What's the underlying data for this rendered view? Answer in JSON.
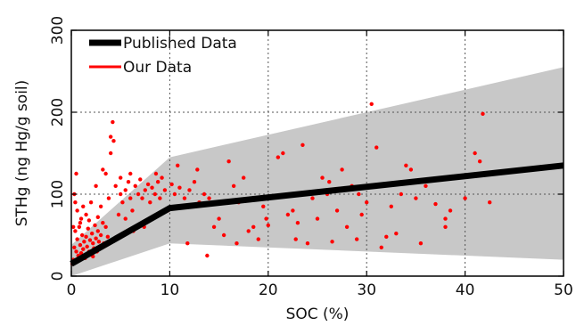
{
  "chart_data": {
    "type": "scatter",
    "xlabel": "SOC (%)",
    "ylabel": "STHg (ng Hg/g soil)",
    "xlim": [
      0,
      50
    ],
    "ylim": [
      0,
      300
    ],
    "x_ticks": [
      0,
      10,
      20,
      30,
      40,
      50
    ],
    "y_ticks": [
      0,
      100,
      200,
      300
    ],
    "x_tick_labels": [
      "0",
      "10",
      "20",
      "30",
      "40",
      "50"
    ],
    "y_tick_labels": [
      "0",
      "100",
      "200",
      "300"
    ],
    "grid": true,
    "legend_position": "top-left",
    "legend": [
      {
        "name": "Published Data",
        "color": "#000000"
      },
      {
        "name": "Our Data",
        "color": "#ff0000"
      }
    ],
    "band": {
      "color": "#c8c8c8",
      "upper": [
        [
          0,
          38
        ],
        [
          10,
          145
        ],
        [
          50,
          255
        ]
      ],
      "lower": [
        [
          0,
          0
        ],
        [
          10,
          40
        ],
        [
          50,
          20
        ]
      ]
    },
    "series": [
      {
        "name": "Published Data",
        "kind": "line",
        "color": "#000000",
        "points": [
          [
            0,
            15
          ],
          [
            10,
            83
          ],
          [
            50,
            135
          ]
        ]
      },
      {
        "name": "Our Data",
        "kind": "scatter",
        "color": "#ff0000",
        "points": [
          [
            0.2,
            20
          ],
          [
            0.3,
            35
          ],
          [
            0.4,
            55
          ],
          [
            0.5,
            30
          ],
          [
            0.6,
            45
          ],
          [
            0.7,
            25
          ],
          [
            0.8,
            60
          ],
          [
            0.9,
            38
          ],
          [
            1.0,
            28
          ],
          [
            1.1,
            50
          ],
          [
            1.2,
            33
          ],
          [
            1.3,
            42
          ],
          [
            1.4,
            22
          ],
          [
            1.5,
            48
          ],
          [
            1.6,
            36
          ],
          [
            1.7,
            58
          ],
          [
            1.8,
            30
          ],
          [
            1.9,
            44
          ],
          [
            2.0,
            26
          ],
          [
            2.1,
            52
          ],
          [
            2.2,
            40
          ],
          [
            2.3,
            34
          ],
          [
            2.4,
            62
          ],
          [
            2.5,
            46
          ],
          [
            2.6,
            30
          ],
          [
            2.7,
            55
          ],
          [
            2.8,
            42
          ],
          [
            2.9,
            35
          ],
          [
            3.0,
            50
          ],
          [
            3.2,
            65
          ],
          [
            0.3,
            100
          ],
          [
            0.5,
            125
          ],
          [
            0.6,
            80
          ],
          [
            1.0,
            70
          ],
          [
            1.5,
            75
          ],
          [
            2.0,
            90
          ],
          [
            2.5,
            110
          ],
          [
            3.0,
            85
          ],
          [
            3.2,
            130
          ],
          [
            3.5,
            125
          ],
          [
            3.5,
            60
          ],
          [
            3.8,
            95
          ],
          [
            4.0,
            150
          ],
          [
            4.0,
            170
          ],
          [
            4.2,
            188
          ],
          [
            4.3,
            165
          ],
          [
            4.5,
            110
          ],
          [
            4.8,
            75
          ],
          [
            5.0,
            100
          ],
          [
            5.0,
            120
          ],
          [
            5.2,
            90
          ],
          [
            5.5,
            105
          ],
          [
            5.8,
            115
          ],
          [
            6.0,
            95
          ],
          [
            6.0,
            125
          ],
          [
            6.2,
            80
          ],
          [
            6.5,
            110
          ],
          [
            6.8,
            100
          ],
          [
            7.0,
            118
          ],
          [
            7.2,
            95
          ],
          [
            7.5,
            105
          ],
          [
            7.8,
            112
          ],
          [
            8.0,
            90
          ],
          [
            8.2,
            108
          ],
          [
            8.5,
            100
          ],
          [
            8.8,
            115
          ],
          [
            9.0,
            95
          ],
          [
            9.5,
            105
          ],
          [
            9.8,
            80
          ],
          [
            10.2,
            112
          ],
          [
            10.5,
            100
          ],
          [
            11.0,
            108
          ],
          [
            11.5,
            95
          ],
          [
            12.0,
            105
          ],
          [
            12.5,
            115
          ],
          [
            13.0,
            90
          ],
          [
            13.5,
            100
          ],
          [
            14.0,
            95
          ],
          [
            14.5,
            60
          ],
          [
            15.0,
            70
          ],
          [
            15.5,
            50
          ],
          [
            16.0,
            140
          ],
          [
            16.5,
            110
          ],
          [
            17.0,
            90
          ],
          [
            17.5,
            120
          ],
          [
            18.0,
            55
          ],
          [
            18.5,
            60
          ],
          [
            19.0,
            45
          ],
          [
            19.5,
            85
          ],
          [
            20.0,
            62
          ],
          [
            21.0,
            145
          ],
          [
            21.5,
            150
          ],
          [
            22.0,
            75
          ],
          [
            22.5,
            80
          ],
          [
            23.0,
            65
          ],
          [
            23.5,
            160
          ],
          [
            24.0,
            40
          ],
          [
            24.5,
            95
          ],
          [
            25.0,
            70
          ],
          [
            25.5,
            120
          ],
          [
            26.0,
            100
          ],
          [
            26.5,
            42
          ],
          [
            27.0,
            80
          ],
          [
            27.5,
            130
          ],
          [
            28.0,
            60
          ],
          [
            28.5,
            110
          ],
          [
            29.0,
            45
          ],
          [
            29.5,
            75
          ],
          [
            30.0,
            90
          ],
          [
            30.5,
            210
          ],
          [
            31.0,
            157
          ],
          [
            31.5,
            35
          ],
          [
            32.0,
            48
          ],
          [
            32.5,
            85
          ],
          [
            33.0,
            52
          ],
          [
            33.5,
            100
          ],
          [
            34.0,
            135
          ],
          [
            34.5,
            130
          ],
          [
            35.0,
            95
          ],
          [
            35.5,
            40
          ],
          [
            36.0,
            110
          ],
          [
            37.0,
            88
          ],
          [
            38.0,
            60
          ],
          [
            38.0,
            70
          ],
          [
            38.5,
            80
          ],
          [
            40.0,
            95
          ],
          [
            41.0,
            150
          ],
          [
            41.5,
            140
          ],
          [
            41.8,
            198
          ],
          [
            42.5,
            90
          ],
          [
            0.1,
            15
          ],
          [
            0.2,
            60
          ],
          [
            0.4,
            90
          ],
          [
            0.6,
            18
          ],
          [
            0.9,
            65
          ],
          [
            1.2,
            85
          ],
          [
            1.8,
            68
          ],
          [
            2.2,
            24
          ],
          [
            2.7,
            72
          ],
          [
            3.3,
            40
          ],
          [
            3.7,
            48
          ],
          [
            5.5,
            70
          ],
          [
            6.3,
            55
          ],
          [
            7.4,
            60
          ],
          [
            8.6,
            125
          ],
          [
            9.2,
            120
          ],
          [
            10.8,
            135
          ],
          [
            11.8,
            40
          ],
          [
            12.8,
            130
          ],
          [
            13.8,
            25
          ],
          [
            16.8,
            40
          ],
          [
            19.8,
            70
          ],
          [
            22.8,
            45
          ],
          [
            26.2,
            115
          ],
          [
            29.2,
            100
          ]
        ]
      }
    ]
  }
}
